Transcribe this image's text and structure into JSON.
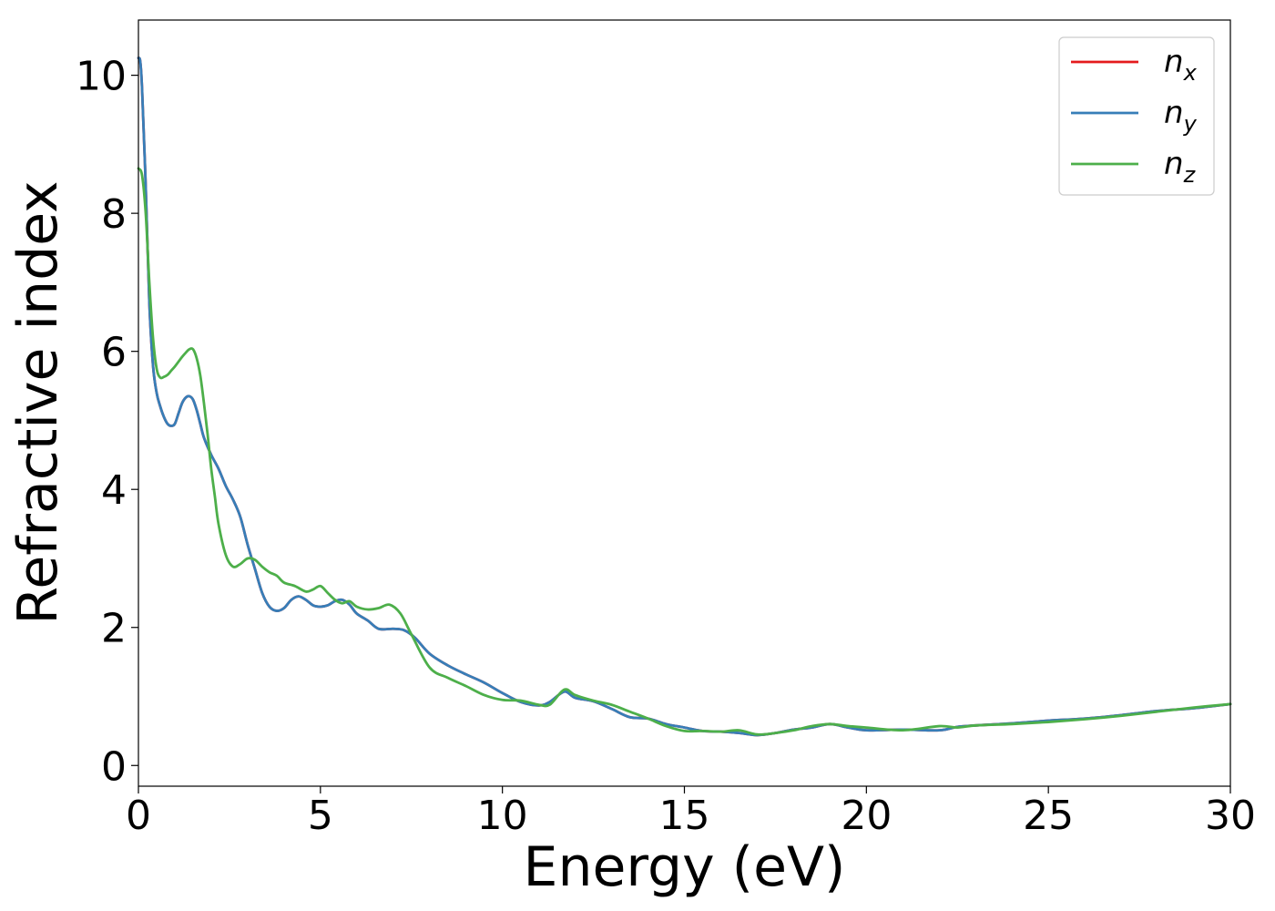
{
  "chart_data": {
    "type": "line",
    "xlabel": "Energy (eV)",
    "ylabel": "Refractive index",
    "xlim": [
      0,
      30
    ],
    "ylim": [
      -0.3,
      10.8
    ],
    "xticks": [
      "0",
      "5",
      "10",
      "15",
      "20",
      "25",
      "30"
    ],
    "yticks": [
      "0",
      "2",
      "4",
      "6",
      "8",
      "10"
    ],
    "grid": false,
    "legend_position": "top-right",
    "colors": {
      "n_x": "#e41a1c",
      "n_y": "#377eb8",
      "n_z": "#4daf4a"
    },
    "series": [
      {
        "name": "n_x",
        "legend": {
          "base": "n",
          "sub": "x"
        },
        "x": [
          0,
          0.05,
          0.1,
          0.2,
          0.3,
          0.4,
          0.5,
          0.6,
          0.7,
          0.8,
          0.9,
          1.0,
          1.1,
          1.2,
          1.3,
          1.4,
          1.5,
          1.6,
          1.7,
          1.8,
          2.0,
          2.2,
          2.4,
          2.6,
          2.8,
          3.0,
          3.2,
          3.4,
          3.6,
          3.8,
          4.0,
          4.2,
          4.4,
          4.6,
          4.8,
          5.0,
          5.2,
          5.4,
          5.6,
          5.8,
          6.0,
          6.3,
          6.6,
          7.0,
          7.3,
          7.6,
          8.0,
          8.5,
          9.0,
          9.5,
          10.0,
          10.5,
          11.0,
          11.3,
          11.7,
          12.0,
          12.5,
          13.0,
          13.5,
          14.0,
          14.5,
          15.0,
          15.5,
          16.0,
          16.5,
          17.0,
          17.5,
          18.0,
          18.5,
          19.0,
          19.5,
          20.0,
          21.0,
          22.0,
          22.5,
          23.0,
          24.0,
          25.0,
          26.0,
          27.0,
          28.0,
          29.0,
          30.0
        ],
        "y": [
          10.25,
          10.2,
          9.8,
          8.4,
          6.7,
          5.8,
          5.4,
          5.2,
          5.05,
          4.95,
          4.92,
          4.95,
          5.1,
          5.25,
          5.33,
          5.35,
          5.3,
          5.15,
          4.95,
          4.75,
          4.5,
          4.3,
          4.05,
          3.85,
          3.6,
          3.2,
          2.85,
          2.5,
          2.3,
          2.24,
          2.28,
          2.4,
          2.45,
          2.4,
          2.32,
          2.3,
          2.32,
          2.38,
          2.4,
          2.33,
          2.2,
          2.1,
          1.98,
          1.98,
          1.96,
          1.85,
          1.62,
          1.45,
          1.32,
          1.2,
          1.05,
          0.92,
          0.87,
          0.92,
          1.07,
          0.98,
          0.93,
          0.82,
          0.7,
          0.68,
          0.6,
          0.55,
          0.5,
          0.49,
          0.47,
          0.44,
          0.47,
          0.52,
          0.55,
          0.6,
          0.55,
          0.51,
          0.52,
          0.51,
          0.56,
          0.58,
          0.61,
          0.65,
          0.68,
          0.73,
          0.79,
          0.83,
          0.89
        ]
      },
      {
        "name": "n_y",
        "legend": {
          "base": "n",
          "sub": "y"
        },
        "x": [
          0,
          0.05,
          0.1,
          0.2,
          0.3,
          0.4,
          0.5,
          0.6,
          0.7,
          0.8,
          0.9,
          1.0,
          1.1,
          1.2,
          1.3,
          1.4,
          1.5,
          1.6,
          1.7,
          1.8,
          2.0,
          2.2,
          2.4,
          2.6,
          2.8,
          3.0,
          3.2,
          3.4,
          3.6,
          3.8,
          4.0,
          4.2,
          4.4,
          4.6,
          4.8,
          5.0,
          5.2,
          5.4,
          5.6,
          5.8,
          6.0,
          6.3,
          6.6,
          7.0,
          7.3,
          7.6,
          8.0,
          8.5,
          9.0,
          9.5,
          10.0,
          10.5,
          11.0,
          11.3,
          11.7,
          12.0,
          12.5,
          13.0,
          13.5,
          14.0,
          14.5,
          15.0,
          15.5,
          16.0,
          16.5,
          17.0,
          17.5,
          18.0,
          18.5,
          19.0,
          19.5,
          20.0,
          21.0,
          22.0,
          22.5,
          23.0,
          24.0,
          25.0,
          26.0,
          27.0,
          28.0,
          29.0,
          30.0
        ],
        "y": [
          10.25,
          10.2,
          9.8,
          8.4,
          6.7,
          5.8,
          5.4,
          5.2,
          5.05,
          4.95,
          4.92,
          4.95,
          5.1,
          5.25,
          5.33,
          5.35,
          5.3,
          5.15,
          4.95,
          4.75,
          4.5,
          4.3,
          4.05,
          3.85,
          3.6,
          3.2,
          2.85,
          2.5,
          2.3,
          2.24,
          2.28,
          2.4,
          2.45,
          2.4,
          2.32,
          2.3,
          2.32,
          2.38,
          2.4,
          2.33,
          2.2,
          2.1,
          1.98,
          1.98,
          1.96,
          1.85,
          1.62,
          1.45,
          1.32,
          1.2,
          1.05,
          0.92,
          0.87,
          0.92,
          1.07,
          0.98,
          0.93,
          0.82,
          0.7,
          0.68,
          0.6,
          0.55,
          0.5,
          0.49,
          0.47,
          0.44,
          0.47,
          0.52,
          0.55,
          0.6,
          0.55,
          0.51,
          0.52,
          0.51,
          0.56,
          0.58,
          0.61,
          0.65,
          0.68,
          0.73,
          0.79,
          0.83,
          0.89
        ]
      },
      {
        "name": "n_z",
        "legend": {
          "base": "n",
          "sub": "z"
        },
        "x": [
          0,
          0.1,
          0.2,
          0.3,
          0.4,
          0.5,
          0.6,
          0.7,
          0.8,
          0.9,
          1.0,
          1.1,
          1.2,
          1.3,
          1.4,
          1.5,
          1.6,
          1.7,
          1.8,
          1.9,
          2.0,
          2.1,
          2.2,
          2.4,
          2.6,
          2.8,
          3.0,
          3.2,
          3.4,
          3.6,
          3.8,
          4.0,
          4.3,
          4.6,
          4.8,
          5.0,
          5.2,
          5.4,
          5.6,
          5.8,
          6.0,
          6.3,
          6.6,
          6.9,
          7.2,
          7.5,
          8.0,
          8.5,
          9.0,
          9.5,
          10.0,
          10.5,
          11.0,
          11.3,
          11.7,
          12.0,
          12.5,
          13.0,
          13.5,
          14.0,
          14.5,
          15.0,
          15.5,
          16.0,
          16.5,
          17.0,
          17.5,
          18.0,
          18.5,
          19.0,
          19.5,
          20.0,
          21.0,
          22.0,
          22.5,
          23.0,
          24.0,
          25.0,
          26.0,
          27.0,
          28.0,
          29.0,
          30.0
        ],
        "y": [
          8.65,
          8.55,
          8.0,
          7.0,
          6.2,
          5.75,
          5.62,
          5.63,
          5.66,
          5.72,
          5.78,
          5.85,
          5.92,
          5.98,
          6.03,
          6.03,
          5.9,
          5.65,
          5.25,
          4.8,
          4.3,
          3.9,
          3.5,
          3.05,
          2.88,
          2.92,
          3.0,
          2.98,
          2.88,
          2.8,
          2.75,
          2.65,
          2.6,
          2.52,
          2.55,
          2.6,
          2.5,
          2.4,
          2.35,
          2.38,
          2.3,
          2.26,
          2.28,
          2.33,
          2.2,
          1.9,
          1.42,
          1.27,
          1.15,
          1.02,
          0.95,
          0.94,
          0.88,
          0.88,
          1.1,
          1.02,
          0.94,
          0.88,
          0.78,
          0.68,
          0.57,
          0.5,
          0.5,
          0.49,
          0.51,
          0.45,
          0.47,
          0.51,
          0.57,
          0.6,
          0.57,
          0.55,
          0.51,
          0.57,
          0.55,
          0.58,
          0.6,
          0.63,
          0.67,
          0.72,
          0.78,
          0.84,
          0.89
        ]
      }
    ]
  }
}
